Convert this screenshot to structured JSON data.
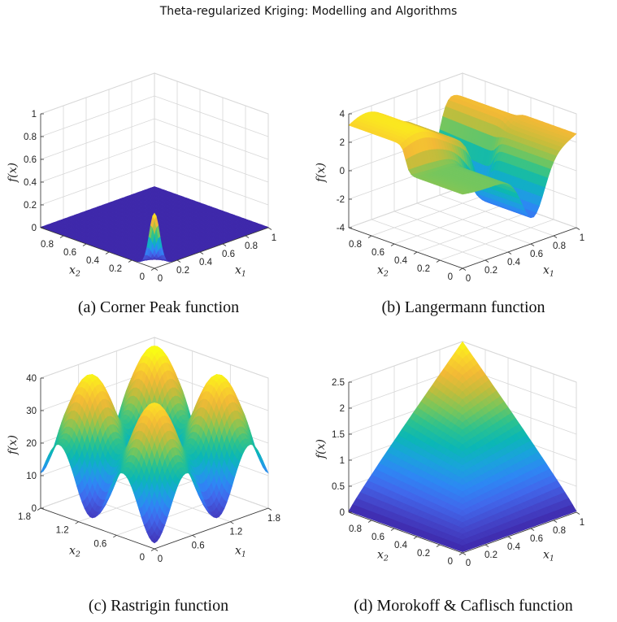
{
  "header": {
    "title": "Theta-regularized Kriging: Modelling and Algorithms"
  },
  "colormap": [
    "#3e26a8",
    "#4445c9",
    "#4168ec",
    "#2e87f4",
    "#1aa3dc",
    "#0bb7b5",
    "#2ec28d",
    "#7bc65a",
    "#c2bd3c",
    "#f2b936",
    "#fad62a",
    "#f9fb15"
  ],
  "panels": [
    {
      "id": "a",
      "caption": "(a) Corner Peak function",
      "chart_data": {
        "type": "surface",
        "function": "Corner Peak",
        "xlabel": "x1",
        "ylabel": "x2",
        "zlabel": "f(x)",
        "x_range": [
          0,
          1
        ],
        "y_range": [
          0,
          1
        ],
        "z_range": [
          0,
          1
        ],
        "x_ticks": [
          "0",
          "0.2",
          "0.4",
          "0.6",
          "0.8",
          "1"
        ],
        "y_ticks": [
          "0",
          "0.2",
          "0.4",
          "0.6",
          "0.8"
        ],
        "z_ticks": [
          "0",
          "0.2",
          "0.4",
          "0.6",
          "0.8",
          "1"
        ],
        "peak": {
          "x1": 0,
          "x2": 0,
          "value": 0.48
        }
      }
    },
    {
      "id": "b",
      "caption": "(b) Langermann function",
      "chart_data": {
        "type": "surface",
        "function": "Langermann",
        "xlabel": "x1",
        "ylabel": "x2",
        "zlabel": "f(x)",
        "x_range": [
          0,
          1
        ],
        "y_range": [
          0,
          1
        ],
        "z_range": [
          -4,
          4
        ],
        "x_ticks": [
          "0",
          "0.2",
          "0.4",
          "0.6",
          "0.8",
          "1"
        ],
        "y_ticks": [
          "0",
          "0.2",
          "0.4",
          "0.6",
          "0.8"
        ],
        "z_ticks": [
          "-4",
          "-2",
          "0",
          "2",
          "4"
        ]
      }
    },
    {
      "id": "c",
      "caption": "(c) Rastrigin function",
      "chart_data": {
        "type": "surface",
        "function": "Rastrigin",
        "xlabel": "x1",
        "ylabel": "x2",
        "zlabel": "f(x)",
        "x_range": [
          0,
          1.8
        ],
        "y_range": [
          0,
          1.8
        ],
        "z_range": [
          0,
          45
        ],
        "x_ticks": [
          "0",
          "0.6",
          "1.2",
          "1.8"
        ],
        "y_ticks": [
          "0",
          "0.6",
          "1.2",
          "1.8"
        ],
        "z_ticks": [
          "0",
          "10",
          "20",
          "30",
          "40"
        ]
      }
    },
    {
      "id": "d",
      "caption": "(d) Morokoff & Caflisch function",
      "chart_data": {
        "type": "surface",
        "function": "Morokoff & Caflisch",
        "xlabel": "x1",
        "ylabel": "x2",
        "zlabel": "f(x)",
        "x_range": [
          0,
          1
        ],
        "y_range": [
          0,
          1
        ],
        "z_range": [
          0,
          2.5
        ],
        "x_ticks": [
          "0",
          "0.2",
          "0.4",
          "0.6",
          "0.8",
          "1"
        ],
        "y_ticks": [
          "0",
          "0.2",
          "0.4",
          "0.6",
          "0.8"
        ],
        "z_ticks": [
          "0",
          "0.5",
          "1",
          "1.5",
          "2",
          "2.5"
        ]
      }
    }
  ]
}
